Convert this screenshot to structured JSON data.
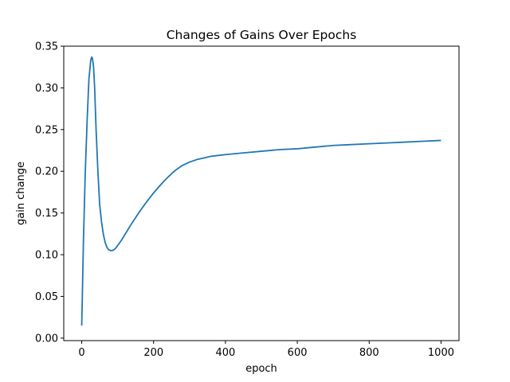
{
  "chart_data": {
    "type": "line",
    "title": "Changes of Gains Over Epochs",
    "xlabel": "epoch",
    "ylabel": "gain change",
    "xlim": [
      -50,
      1050
    ],
    "ylim": [
      -0.003,
      0.35
    ],
    "xticks": [
      0,
      200,
      400,
      600,
      800,
      1000
    ],
    "xtick_labels": [
      "0",
      "200",
      "400",
      "600",
      "800",
      "1000"
    ],
    "yticks": [
      0.0,
      0.05,
      0.1,
      0.15,
      0.2,
      0.25,
      0.3,
      0.35
    ],
    "ytick_labels": [
      "0.00",
      "0.05",
      "0.10",
      "0.15",
      "0.20",
      "0.25",
      "0.30",
      "0.35"
    ],
    "grid": false,
    "series": [
      {
        "color": "#1f77b4",
        "x": [
          0,
          5,
          10,
          15,
          20,
          25,
          28,
          30,
          33,
          36,
          40,
          45,
          50,
          55,
          60,
          65,
          70,
          75,
          80,
          85,
          90,
          95,
          100,
          110,
          120,
          140,
          160,
          180,
          200,
          220,
          240,
          260,
          280,
          300,
          320,
          340,
          360,
          380,
          400,
          450,
          500,
          550,
          600,
          650,
          700,
          750,
          800,
          850,
          900,
          950,
          1000
        ],
        "y": [
          0.015,
          0.12,
          0.2,
          0.26,
          0.31,
          0.333,
          0.337,
          0.335,
          0.325,
          0.3,
          0.25,
          0.2,
          0.16,
          0.14,
          0.125,
          0.115,
          0.109,
          0.106,
          0.105,
          0.105,
          0.106,
          0.108,
          0.111,
          0.117,
          0.124,
          0.138,
          0.151,
          0.163,
          0.174,
          0.184,
          0.193,
          0.201,
          0.207,
          0.211,
          0.214,
          0.216,
          0.218,
          0.219,
          0.22,
          0.222,
          0.224,
          0.226,
          0.227,
          0.229,
          0.231,
          0.232,
          0.233,
          0.234,
          0.235,
          0.236,
          0.237
        ]
      }
    ]
  }
}
